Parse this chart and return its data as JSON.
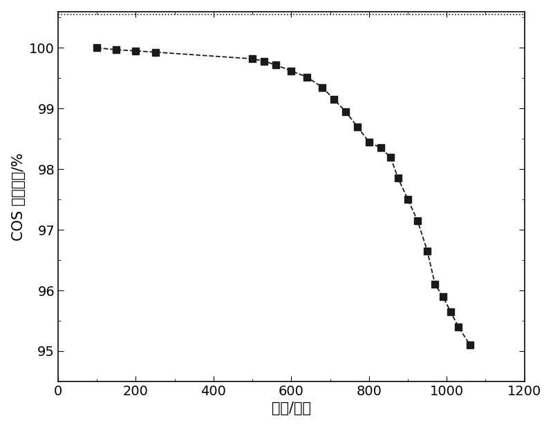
{
  "x": [
    100,
    150,
    200,
    250,
    500,
    530,
    560,
    600,
    640,
    680,
    710,
    740,
    770,
    800,
    830,
    855,
    875,
    900,
    925,
    950,
    970,
    990,
    1010,
    1030,
    1060
  ],
  "y": [
    100.0,
    99.97,
    99.95,
    99.93,
    99.82,
    99.78,
    99.72,
    99.62,
    99.52,
    99.35,
    99.15,
    98.95,
    98.7,
    98.45,
    98.35,
    98.2,
    97.85,
    97.5,
    97.15,
    96.65,
    96.1,
    95.9,
    95.65,
    95.4,
    95.1
  ],
  "xlabel": "时间/分钟",
  "ylabel": "COS 去除效率/%",
  "xlim": [
    0,
    1200
  ],
  "ylim": [
    94.5,
    100.6
  ],
  "xticks": [
    0,
    200,
    400,
    600,
    800,
    1000,
    1200
  ],
  "yticks": [
    95,
    96,
    97,
    98,
    99,
    100
  ],
  "line_color": "#1a1a1a",
  "marker_color": "#1a1a1a",
  "background_color": "#ffffff",
  "top_dotted_line_y": 100.55,
  "xlabel_fontsize": 15,
  "ylabel_fontsize": 15,
  "tick_fontsize": 14
}
